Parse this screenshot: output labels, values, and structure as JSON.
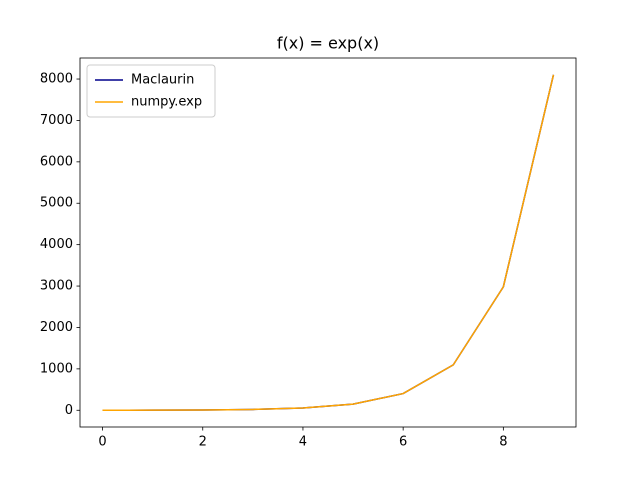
{
  "chart_data": {
    "type": "line",
    "title": "f(x) = exp(x)",
    "x": [
      0,
      1,
      2,
      3,
      4,
      5,
      6,
      7,
      8,
      9
    ],
    "series": [
      {
        "name": "Maclaurin",
        "color": "#00008b",
        "values": [
          1,
          2.7,
          7.4,
          20,
          55,
          148,
          403,
          1097,
          2981,
          8103
        ]
      },
      {
        "name": "numpy.exp",
        "color": "#ffa500",
        "values": [
          1,
          2.7,
          7.4,
          20,
          55,
          148,
          403,
          1097,
          2981,
          8103
        ]
      }
    ],
    "xlim": [
      -0.45,
      9.45
    ],
    "xticks": [
      0,
      2,
      4,
      6,
      8
    ],
    "ylim": [
      -404,
      8508
    ],
    "yticks": [
      0,
      1000,
      2000,
      3000,
      4000,
      5000,
      6000,
      7000,
      8000
    ],
    "grid": false,
    "legend": "upper-left"
  }
}
